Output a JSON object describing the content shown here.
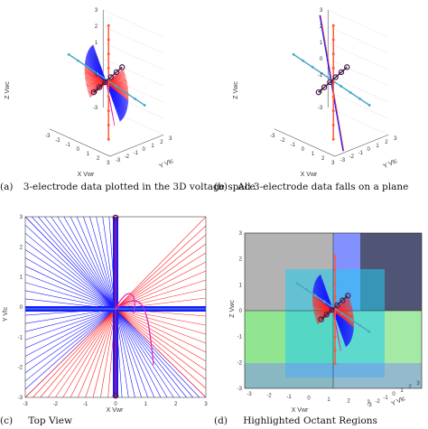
{
  "panels": [
    {
      "id": "a",
      "caption_label": "(a)",
      "caption_text": "3-electrode data plotted in the 3D voltage space",
      "axes": {
        "x": "X Vwr",
        "y": "Y Vlc",
        "z": "Z Vwc"
      },
      "ticks_z": [
        "3",
        "2",
        "1",
        "0",
        "-1",
        "-2",
        "-3"
      ],
      "ticks_x": [
        "-3",
        "-2",
        "-1",
        "0",
        "1",
        "2",
        "3"
      ],
      "ticks_y": [
        "-3",
        "-2",
        "-1",
        "0",
        "1",
        "2",
        "3"
      ]
    },
    {
      "id": "b",
      "caption_label": "(b)",
      "caption_text": "All 3-electrode data falls on a plane",
      "axes": {
        "x": "X Vwr",
        "y": "Y Vlc",
        "z": "Z Vwc"
      },
      "ticks_z": [
        "3",
        "2",
        "1",
        "0",
        "-1",
        "-2",
        "-3"
      ],
      "ticks_x": [
        "-3",
        "-2",
        "-1",
        "0",
        "1",
        "2",
        "3"
      ],
      "ticks_y": [
        "-3",
        "-2",
        "-1",
        "0",
        "1",
        "2",
        "3"
      ]
    },
    {
      "id": "c",
      "caption_label": "(c)",
      "caption_text": "Top View",
      "axes": {
        "x": "X Vwr",
        "y": "Y Vlc"
      },
      "ticks_x": [
        "-3",
        "-2",
        "-1",
        "0",
        "1",
        "2",
        "3"
      ],
      "ticks_y": [
        "3",
        "2",
        "1",
        "0",
        "-1",
        "-2",
        "-3"
      ]
    },
    {
      "id": "d",
      "caption_label": "(d)",
      "caption_text": "Highlighted Octant Regions",
      "axes": {
        "x": "X Vwr",
        "y": "Y Vlc",
        "z": "Z Vwc"
      },
      "ticks_z": [
        "3",
        "2",
        "1",
        "0",
        "-1",
        "-2",
        "-3"
      ],
      "ticks_x": [
        "-3",
        "-2",
        "-1",
        "0",
        "1",
        "2",
        "3"
      ],
      "ticks_y": [
        "-3",
        "-2",
        "-1",
        "0",
        "1",
        "2",
        "3"
      ]
    }
  ],
  "colors": {
    "blue": "#1a1aff",
    "red": "#ff2020",
    "magenta": "#e020c0",
    "teal": "#4aa8c8",
    "orange": "#ff5a3c",
    "purple": "#4a1a4a"
  }
}
